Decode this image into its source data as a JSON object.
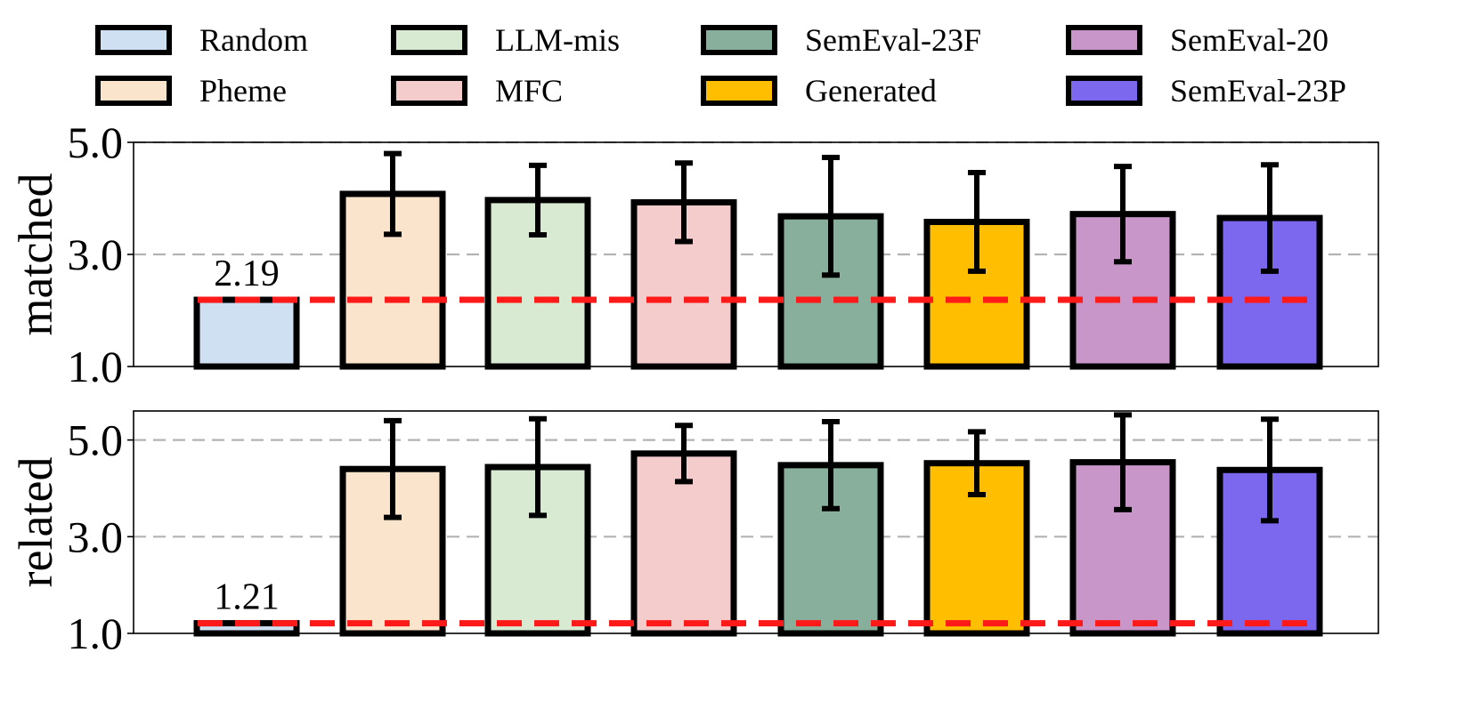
{
  "chart_data": [
    {
      "type": "bar",
      "ylabel": "matched",
      "ylim": [
        1.0,
        5.0
      ],
      "yticks": [
        "1.0",
        "3.0",
        "5.0"
      ],
      "categories": [
        "Random",
        "Pheme",
        "LLM-mis",
        "MFC",
        "SemEval-23F",
        "Generated",
        "SemEval-20",
        "SemEval-23P"
      ],
      "values": [
        2.19,
        4.08,
        3.97,
        3.93,
        3.68,
        3.58,
        3.72,
        3.65
      ],
      "error": [
        null,
        0.72,
        0.62,
        0.7,
        1.05,
        0.88,
        0.85,
        0.95
      ],
      "annotation": "2.19",
      "reference_line": 2.19,
      "grid": true
    },
    {
      "type": "bar",
      "ylabel": "related",
      "ylim": [
        1.0,
        5.6
      ],
      "yticks": [
        "1.0",
        "3.0",
        "5.0"
      ],
      "categories": [
        "Random",
        "Pheme",
        "LLM-mis",
        "MFC",
        "SemEval-23F",
        "Generated",
        "SemEval-20",
        "SemEval-23P"
      ],
      "values": [
        1.21,
        4.4,
        4.44,
        4.72,
        4.48,
        4.52,
        4.54,
        4.38
      ],
      "error": [
        null,
        1.0,
        1.0,
        0.58,
        0.9,
        0.65,
        0.98,
        1.05
      ],
      "annotation": "1.21",
      "reference_line": 1.21,
      "grid": true
    }
  ],
  "legend": {
    "position": "top",
    "items": [
      {
        "label": "Random",
        "color": "#cfe0f2"
      },
      {
        "label": "LLM-mis",
        "color": "#d9ead3"
      },
      {
        "label": "SemEval-23F",
        "color": "#88af9c"
      },
      {
        "label": "SemEval-20",
        "color": "#c896c9"
      },
      {
        "label": "Pheme",
        "color": "#fbe4cc"
      },
      {
        "label": "MFC",
        "color": "#f4cccc"
      },
      {
        "label": "Generated",
        "color": "#ffbf00"
      },
      {
        "label": "SemEval-23P",
        "color": "#7b68ee"
      }
    ]
  },
  "colors": {
    "Random": "#cfe0f2",
    "Pheme": "#fbe4cc",
    "LLM-mis": "#d9ead3",
    "MFC": "#f4cccc",
    "SemEval-23F": "#88af9c",
    "Generated": "#ffbf00",
    "SemEval-20": "#c896c9",
    "SemEval-23P": "#7b68ee",
    "reference": "#ff1a1a",
    "grid": "#b3b3b3"
  }
}
